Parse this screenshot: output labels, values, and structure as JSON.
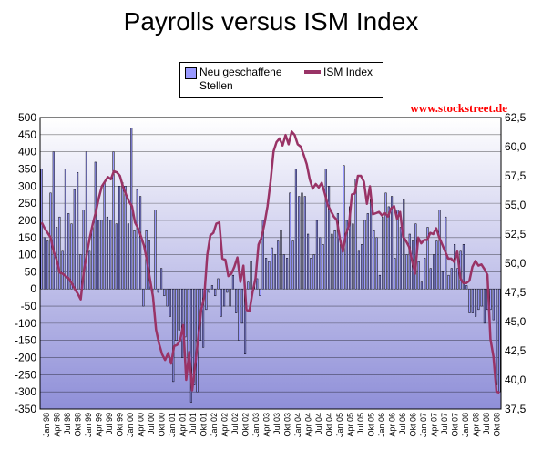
{
  "chart_data": {
    "type": "bar+line",
    "title": "Payrolls versus ISM Index",
    "source": "www.stockstreet.de",
    "legend": {
      "placement": "top",
      "bars_label": "Neu geschaffene Stellen",
      "line_label": "ISM Index"
    },
    "y_left": {
      "min": -350,
      "max": 500,
      "step": 50
    },
    "y_right": {
      "min": 37.5,
      "max": 62.5,
      "step": 2.5
    },
    "x_tick_labels": [
      "Jan 98",
      "Apr 98",
      "Jul 98",
      "Okt 98",
      "Jan 99",
      "Apr 99",
      "Jul 99",
      "Okt 99",
      "Jan 00",
      "Apr 00",
      "Jul 00",
      "Okt 00",
      "Jan 01",
      "Apr 01",
      "Jul 01",
      "Okt 01",
      "Jan 02",
      "Apr 02",
      "Jul 02",
      "Okt 02",
      "Jan 03",
      "Apr 03",
      "Jul 03",
      "Okt 03",
      "Jan 04",
      "Apr 04",
      "Jul 04",
      "Okt 04",
      "Jan 05",
      "Apr 05",
      "Jul 05",
      "Okt 05",
      "Jan 06",
      "Apr 06",
      "Jul 06",
      "Okt 06",
      "Jan 07",
      "Apr 07",
      "Jul 07",
      "Okt 07",
      "Jan 08",
      "Apr 08",
      "Jul 08",
      "Okt 08"
    ],
    "series": [
      {
        "name": "Neu geschaffene Stellen",
        "kind": "bar",
        "color": "#9999ff",
        "values": [
          350,
          150,
          140,
          280,
          400,
          180,
          210,
          110,
          350,
          220,
          190,
          290,
          340,
          100,
          230,
          400,
          110,
          180,
          370,
          200,
          200,
          310,
          210,
          200,
          400,
          190,
          300,
          310,
          300,
          190,
          470,
          170,
          290,
          270,
          -50,
          170,
          140,
          -10,
          230,
          -10,
          60,
          -20,
          -50,
          -80,
          -270,
          -150,
          -120,
          -200,
          -140,
          -230,
          -330,
          -280,
          -300,
          -150,
          -170,
          -60,
          -10,
          10,
          -20,
          30,
          -80,
          -50,
          -10,
          -50,
          40,
          -70,
          -150,
          -100,
          -190,
          20,
          80,
          10,
          30,
          -20,
          200,
          90,
          80,
          120,
          100,
          140,
          170,
          100,
          90,
          280,
          140,
          350,
          270,
          280,
          270,
          160,
          90,
          100,
          200,
          150,
          130,
          350,
          300,
          160,
          170,
          220,
          130,
          360,
          200,
          240,
          190,
          320,
          110,
          130,
          200,
          220,
          260,
          170,
          150,
          40,
          210,
          280,
          240,
          270,
          90,
          230,
          180,
          260,
          100,
          160,
          140,
          190,
          80,
          20,
          90,
          180,
          60,
          100,
          140,
          230,
          50,
          210,
          40,
          60,
          130,
          60,
          110,
          130,
          10,
          -70,
          -70,
          -80,
          -60,
          -50,
          -100,
          -60,
          -60,
          -90,
          -280,
          -300
        ]
      },
      {
        "name": "ISM Index",
        "kind": "line",
        "color": "#993366",
        "values": [
          53.5,
          53.0,
          52.6,
          52.2,
          51.0,
          50.3,
          49.2,
          49.1,
          48.9,
          48.7,
          48.3,
          47.8,
          47.4,
          46.9,
          49.3,
          50.8,
          52.2,
          53.4,
          54.4,
          55.6,
          56.6,
          57.0,
          57.4,
          57.2,
          57.9,
          57.8,
          57.5,
          56.6,
          55.9,
          55.3,
          54.9,
          53.5,
          53.0,
          52.3,
          51.5,
          50.2,
          48.6,
          47.1,
          44.3,
          43.1,
          42.2,
          41.7,
          42.3,
          41.4,
          42.9,
          43.0,
          43.4,
          44.7,
          40.0,
          42.4,
          39.1,
          41.3,
          43.6,
          46.0,
          47.1,
          50.7,
          52.4,
          52.6,
          53.4,
          53.5,
          50.4,
          50.3,
          48.9,
          49.1,
          49.7,
          50.5,
          48.4,
          49.8,
          46.0,
          45.9,
          47.5,
          48.7,
          51.6,
          52.2,
          53.4,
          54.9,
          57.0,
          59.6,
          60.4,
          60.7,
          60.1,
          61.0,
          60.2,
          61.3,
          61.0,
          60.2,
          60.0,
          59.3,
          58.5,
          57.2,
          56.4,
          56.8,
          56.5,
          56.9,
          56.0,
          55.0,
          54.5,
          54.0,
          53.7,
          52.1,
          51.0,
          52.5,
          53.2,
          55.9,
          56.0,
          57.5,
          57.5,
          57.0,
          55.1,
          56.6,
          54.2,
          54.3,
          54.4,
          54.1,
          54.3,
          54.0,
          54.7,
          54.9,
          53.8,
          54.4,
          52.3,
          51.9,
          51.4,
          50.2,
          49.1,
          52.2,
          51.7,
          52.0,
          52.0,
          52.6,
          52.5,
          53.0,
          52.2,
          51.6,
          51.0,
          50.4,
          50.4,
          50.1,
          51.0,
          48.7,
          48.3,
          48.3,
          48.5,
          49.7,
          50.2,
          49.8,
          49.9,
          49.5,
          49.0,
          43.5,
          42.0,
          39.0,
          38.9
        ]
      }
    ]
  }
}
